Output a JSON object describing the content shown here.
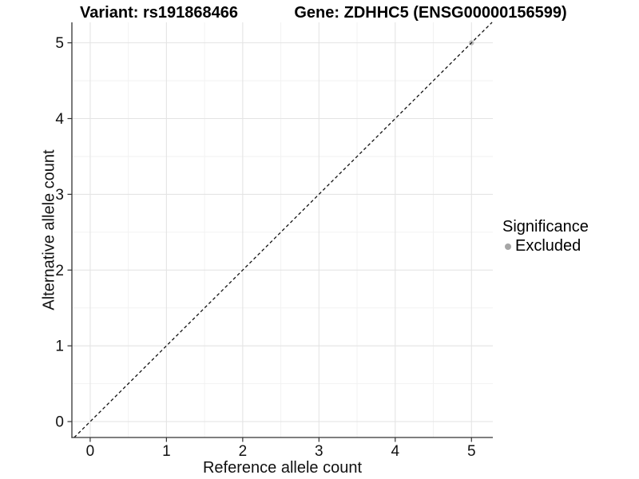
{
  "header": {
    "variant_title": "Variant: rs191868466",
    "gene_title": "Gene: ZDHHC5 (ENSG00000156599)"
  },
  "chart_data": {
    "type": "scatter",
    "title": "Variant: rs191868466 / Gene: ZDHHC5 (ENSG00000156599)",
    "xlabel": "Reference allele count",
    "ylabel": "Alternative allele count",
    "xlim": [
      -0.24,
      5.28
    ],
    "ylim": [
      -0.21,
      5.27
    ],
    "x_ticks": [
      0,
      1,
      2,
      3,
      4,
      5
    ],
    "y_ticks": [
      0,
      1,
      2,
      3,
      4,
      5
    ],
    "x_minor_ticks": [
      0.5,
      1.5,
      2.5,
      3.5,
      4.5
    ],
    "y_minor_ticks": [
      0.5,
      1.5,
      2.5,
      3.5,
      4.5
    ],
    "grid": "major+minor",
    "series": [
      {
        "name": "Excluded",
        "color": "#bfbfbf",
        "points": [
          [
            5,
            5
          ]
        ]
      }
    ],
    "reference_line": {
      "kind": "identity y=x",
      "style": "dashed",
      "color": "#111111"
    },
    "legend": {
      "title": "Significance",
      "position": "right",
      "items": [
        {
          "label": "Excluded",
          "color": "#a6a6a6",
          "marker": "circle"
        }
      ]
    }
  },
  "colors": {
    "background": "#ffffff",
    "axis_line": "#333333",
    "tick_text": "#111111",
    "grid_major": "#e4e4e4",
    "grid_minor": "#f2f2f2"
  }
}
